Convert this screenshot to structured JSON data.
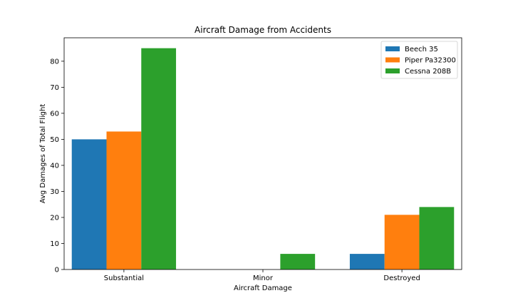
{
  "chart_data": {
    "type": "bar",
    "title": "Aircraft Damage from Accidents",
    "xlabel": "Aircraft Damage",
    "ylabel": "Avg Damages of Total Flight",
    "categories": [
      "Substantial",
      "Minor",
      "Destroyed"
    ],
    "series": [
      {
        "name": "Beech 35",
        "color": "#1f77b4",
        "values": [
          50,
          0,
          6
        ]
      },
      {
        "name": "Piper Pa32300",
        "color": "#ff7f0e",
        "values": [
          53,
          0,
          21
        ]
      },
      {
        "name": "Cessna 208B",
        "color": "#2ca02c",
        "values": [
          85,
          6,
          24
        ]
      }
    ],
    "ylim": [
      0,
      89
    ],
    "yticks": [
      0,
      10,
      20,
      30,
      40,
      50,
      60,
      70,
      80
    ],
    "grid": false,
    "legend": "top-right"
  }
}
